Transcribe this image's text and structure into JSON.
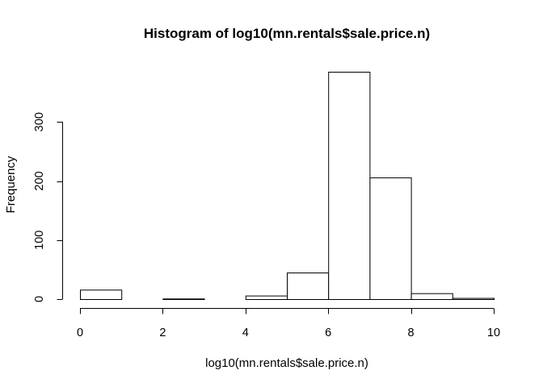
{
  "chart_data": {
    "type": "bar",
    "title": "Histogram of log10(mn.rentals$sale.price.n)",
    "xlabel": "log10(mn.rentals$sale.price.n)",
    "ylabel": "Frequency",
    "bin_edges": [
      0,
      1,
      2,
      3,
      4,
      5,
      6,
      7,
      8,
      9,
      10
    ],
    "values": [
      16,
      0,
      1,
      0,
      6,
      45,
      385,
      206,
      10,
      2
    ],
    "xlim": [
      0,
      10
    ],
    "ylim": [
      0,
      385
    ],
    "xticks": [
      0,
      2,
      4,
      6,
      8,
      10
    ],
    "yticks": [
      0,
      100,
      200,
      300
    ],
    "grid": false,
    "colors": {
      "fill": "#ffffff",
      "stroke": "#000000"
    }
  }
}
